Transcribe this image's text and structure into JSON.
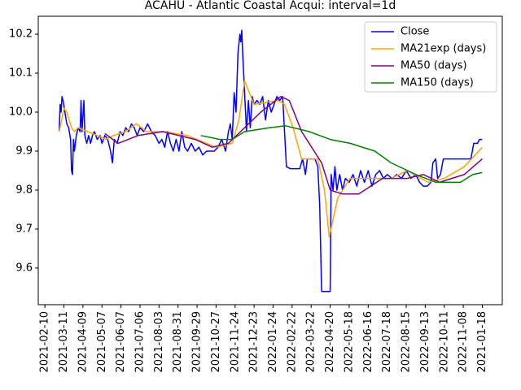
{
  "chart_data": {
    "type": "line",
    "title": "ACAHU - Atlantic Coastal Acqui: interval=1d",
    "xlim": [
      -7,
      481
    ],
    "xticks": [
      {
        "value": 0,
        "label": "2021-02-10"
      },
      {
        "value": 20,
        "label": "2021-03-11"
      },
      {
        "value": 40,
        "label": "2021-04-09"
      },
      {
        "value": 60,
        "label": "2021-05-07"
      },
      {
        "value": 80,
        "label": "2021-06-07"
      },
      {
        "value": 100,
        "label": "2021-07-06"
      },
      {
        "value": 120,
        "label": "2021-08-03"
      },
      {
        "value": 140,
        "label": "2021-08-31"
      },
      {
        "value": 160,
        "label": "2021-09-29"
      },
      {
        "value": 180,
        "label": "2021-10-27"
      },
      {
        "value": 200,
        "label": "2021-11-24"
      },
      {
        "value": 220,
        "label": "2021-12-23"
      },
      {
        "value": 240,
        "label": "2022-01-24"
      },
      {
        "value": 260,
        "label": "2022-02-22"
      },
      {
        "value": 280,
        "label": "2022-03-22"
      },
      {
        "value": 300,
        "label": "2022-04-20"
      },
      {
        "value": 320,
        "label": "2022-05-18"
      },
      {
        "value": 340,
        "label": "2022-06-16"
      },
      {
        "value": 360,
        "label": "2022-07-18"
      },
      {
        "value": 380,
        "label": "2022-08-15"
      },
      {
        "value": 400,
        "label": "2022-09-13"
      },
      {
        "value": 420,
        "label": "2022-10-11"
      },
      {
        "value": 440,
        "label": "2022-11-08"
      },
      {
        "value": 460,
        "label": "2021-01-18"
      }
    ],
    "ylim": [
      9.506,
      10.246
    ],
    "yticks": [
      9.6,
      9.7,
      9.8,
      9.9,
      {
        "value": 10.0,
        "label": "10.0"
      },
      10.1,
      10.2
    ],
    "legend": "upper right",
    "series": [
      {
        "name": "Close",
        "color": "#0000ff",
        "x": [
          15,
          16,
          17,
          18,
          19,
          21,
          23,
          25,
          27,
          28,
          29,
          30,
          31,
          33,
          35,
          37,
          38,
          39,
          41,
          42,
          44,
          46,
          48,
          50,
          52,
          55,
          58,
          60,
          63,
          66,
          69,
          71,
          73,
          76,
          79,
          82,
          85,
          88,
          91,
          94,
          97,
          100,
          104,
          108,
          112,
          116,
          120,
          123,
          126,
          129,
          132,
          135,
          138,
          141,
          144,
          147,
          150,
          154,
          158,
          162,
          166,
          170,
          174,
          178,
          182,
          186,
          190,
          193,
          195,
          197,
          199,
          201,
          203,
          205,
          206,
          207,
          208,
          210,
          212,
          214,
          216,
          218,
          220,
          223,
          226,
          229,
          232,
          235,
          238,
          241,
          244,
          247,
          250,
          252,
          254,
          258,
          263,
          268,
          271,
          274,
          276,
          280,
          284,
          287,
          289,
          291,
          295,
          300,
          301,
          303,
          305,
          307,
          310,
          313,
          316,
          320,
          324,
          328,
          332,
          336,
          340,
          344,
          348,
          352,
          356,
          360,
          365,
          370,
          375,
          380,
          385,
          390,
          394,
          398,
          402,
          406,
          408,
          411,
          413,
          416,
          419,
          424,
          430,
          436,
          442,
          448,
          451,
          455,
          457,
          460
        ],
        "values": [
          9.95,
          10.02,
          10.0,
          10.04,
          10.03,
          10.0,
          9.97,
          9.96,
          9.93,
          9.85,
          9.84,
          9.93,
          9.9,
          9.94,
          9.96,
          9.95,
          10.03,
          9.95,
          10.03,
          9.94,
          9.92,
          9.94,
          9.92,
          9.94,
          9.95,
          9.93,
          9.94,
          9.92,
          9.94,
          9.93,
          9.9,
          9.87,
          9.93,
          9.92,
          9.95,
          9.94,
          9.96,
          9.95,
          9.97,
          9.96,
          9.94,
          9.96,
          9.95,
          9.97,
          9.95,
          9.94,
          9.92,
          9.93,
          9.91,
          9.95,
          9.92,
          9.9,
          9.93,
          9.9,
          9.95,
          9.91,
          9.9,
          9.92,
          9.9,
          9.91,
          9.89,
          9.9,
          9.9,
          9.9,
          9.91,
          9.93,
          9.9,
          9.95,
          9.97,
          9.93,
          10.05,
          10.0,
          10.15,
          10.2,
          10.18,
          10.21,
          10.15,
          10.05,
          9.95,
          10.03,
          9.96,
          10.04,
          10.02,
          10.03,
          10.02,
          10.04,
          9.98,
          10.03,
          10.0,
          10.02,
          10.04,
          10.03,
          10.04,
          9.95,
          9.86,
          9.855,
          9.855,
          9.855,
          9.88,
          9.84,
          9.88,
          9.88,
          9.88,
          9.86,
          9.76,
          9.54,
          9.54,
          9.54,
          9.84,
          9.8,
          9.86,
          9.8,
          9.84,
          9.8,
          9.83,
          9.82,
          9.84,
          9.81,
          9.85,
          9.82,
          9.85,
          9.81,
          9.84,
          9.85,
          9.83,
          9.84,
          9.83,
          9.84,
          9.83,
          9.85,
          9.83,
          9.84,
          9.82,
          9.81,
          9.81,
          9.82,
          9.87,
          9.88,
          9.83,
          9.84,
          9.88,
          9.88,
          9.88,
          9.88,
          9.88,
          9.88,
          9.92,
          9.92,
          9.93,
          9.93
        ]
      },
      {
        "name": "MA21exp (days)",
        "color": "#ffa500",
        "x": [
          15,
          20,
          23,
          28,
          31,
          35,
          45,
          55,
          64,
          72,
          85,
          96,
          107,
          125,
          150,
          180,
          197,
          204,
          210,
          220,
          245,
          252,
          261,
          270,
          287,
          294,
          299,
          308,
          321,
          364,
          381,
          403,
          420,
          441,
          460
        ],
        "values": [
          9.95,
          10.01,
          10.0,
          9.96,
          9.95,
          9.96,
          9.95,
          9.94,
          9.93,
          9.94,
          9.95,
          9.97,
          9.95,
          9.95,
          9.94,
          9.91,
          9.92,
          9.98,
          10.08,
          10.02,
          10.03,
          10.02,
          9.96,
          9.88,
          9.88,
          9.8,
          9.68,
          9.78,
          9.83,
          9.83,
          9.85,
          9.82,
          9.83,
          9.86,
          9.91
        ]
      },
      {
        "name": "MA50 (days)",
        "color": "#800080",
        "x": [
          63,
          77,
          98,
          124,
          158,
          176,
          193,
          210,
          227,
          248,
          257,
          270,
          291,
          300,
          313,
          330,
          355,
          381,
          398,
          415,
          441,
          460
        ],
        "values": [
          9.945,
          9.92,
          9.94,
          9.95,
          9.93,
          9.91,
          9.92,
          9.96,
          10.0,
          10.04,
          10.03,
          9.95,
          9.87,
          9.8,
          9.79,
          9.79,
          9.83,
          9.83,
          9.84,
          9.82,
          9.84,
          9.88
        ]
      },
      {
        "name": "MA150 (days)",
        "color": "#008000",
        "x": [
          164,
          184,
          197,
          210,
          236,
          253,
          278,
          300,
          321,
          347,
          364,
          390,
          411,
          437,
          450,
          460
        ],
        "values": [
          9.94,
          9.93,
          9.93,
          9.95,
          9.96,
          9.965,
          9.95,
          9.93,
          9.92,
          9.9,
          9.87,
          9.84,
          9.82,
          9.82,
          9.84,
          9.845
        ]
      }
    ]
  }
}
